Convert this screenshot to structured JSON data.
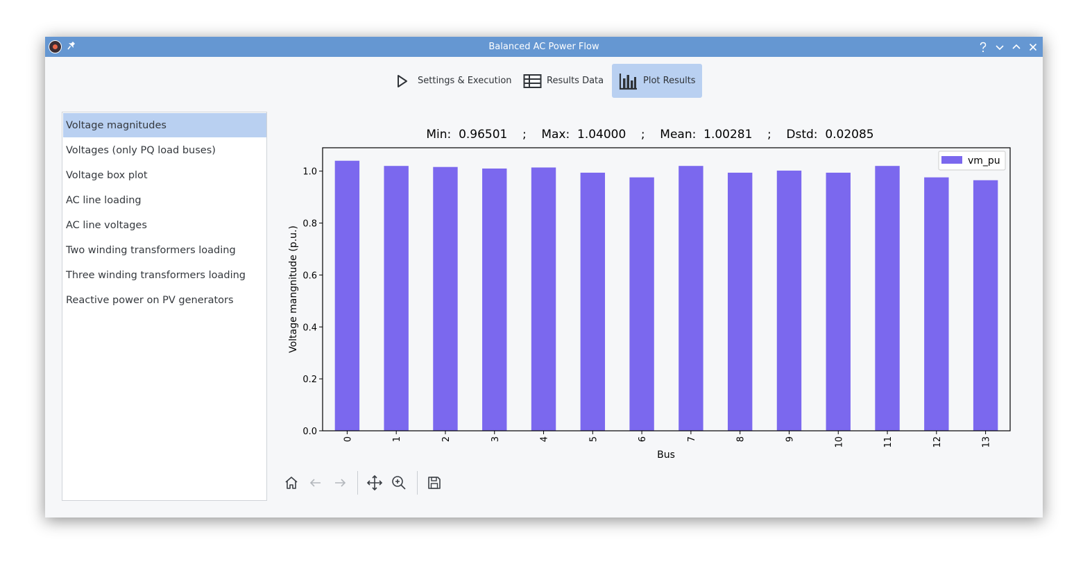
{
  "window": {
    "title": "Balanced AC Power Flow"
  },
  "titlebar_icons": [
    "app-logo-icon",
    "pin-icon",
    "help-icon",
    "minimize-icon",
    "maximize-icon",
    "close-icon"
  ],
  "tabs": [
    {
      "label": "Settings & Execution",
      "icon": "play-icon",
      "active": false
    },
    {
      "label": "Results Data",
      "icon": "table-icon",
      "active": false
    },
    {
      "label": "Plot Results",
      "icon": "bar-chart-icon",
      "active": true
    }
  ],
  "sidebar": {
    "items": [
      {
        "label": "Voltage magnitudes",
        "selected": true
      },
      {
        "label": "Voltages (only PQ load buses)"
      },
      {
        "label": "Voltage box plot"
      },
      {
        "label": "AC line loading"
      },
      {
        "label": "AC line voltages"
      },
      {
        "label": "Two winding transformers loading"
      },
      {
        "label": "Three winding transformers loading"
      },
      {
        "label": "Reactive power on PV generators"
      }
    ]
  },
  "chart_data": {
    "type": "bar",
    "title": "Min:  0.96501    ;    Max:  1.04000    ;    Mean:  1.00281    ;    Dstd:  0.02085",
    "categories": [
      "0",
      "1",
      "2",
      "3",
      "4",
      "5",
      "6",
      "7",
      "8",
      "9",
      "10",
      "11",
      "12",
      "13"
    ],
    "series": [
      {
        "name": "vm_pu",
        "values": [
          1.04,
          1.02,
          1.016,
          1.01,
          1.014,
          0.994,
          0.976,
          1.02,
          0.994,
          1.002,
          0.994,
          1.02,
          0.976,
          0.965
        ]
      }
    ],
    "xlabel": "Bus",
    "ylabel": "Voltage mangnitude (p.u.)",
    "ylim": [
      0,
      1.09
    ],
    "yticks": [
      "0.0",
      "0.2",
      "0.4",
      "0.6",
      "0.8",
      "1.0"
    ],
    "grid": false,
    "legend_position": "top-right",
    "bar_color": "#7b68ee"
  },
  "toolbar": [
    "home-icon",
    "back-icon",
    "forward-icon",
    "pan-icon",
    "zoom-icon",
    "save-icon"
  ]
}
